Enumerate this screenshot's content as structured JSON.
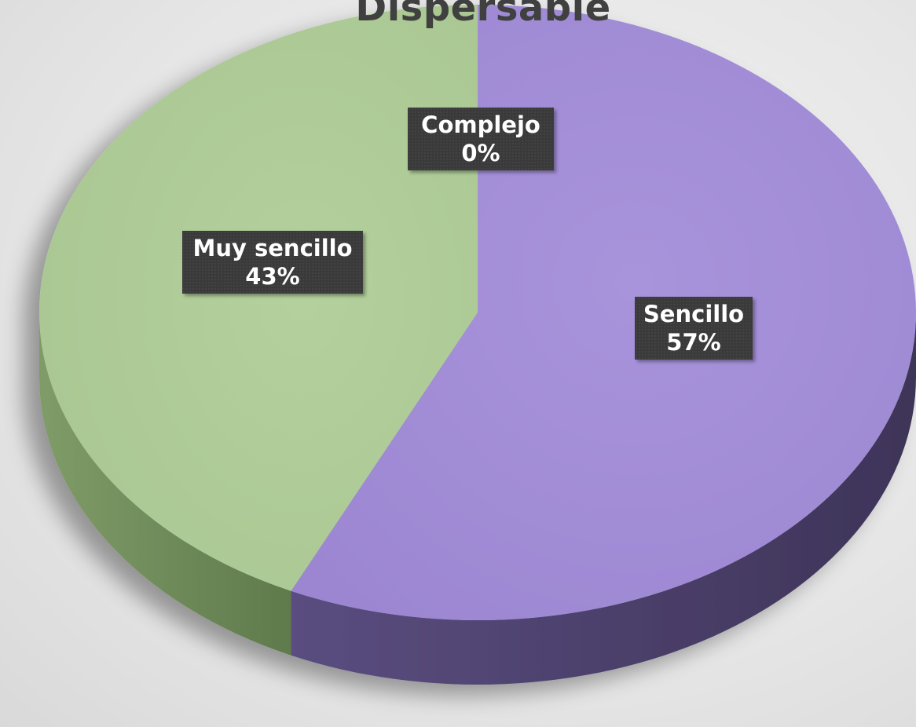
{
  "chart_data": {
    "type": "pie",
    "title": "Dispersable",
    "three_d": true,
    "slices": [
      {
        "category": "Complejo",
        "value": 0,
        "label_text": "0%",
        "color": "#9e89d4"
      },
      {
        "category": "Sencillo",
        "value": 57,
        "label_text": "57%",
        "color": "#a08ad6"
      },
      {
        "category": "Muy sencillo",
        "value": 43,
        "label_text": "43%",
        "color": "#adcb96"
      }
    ],
    "side_colors": {
      "Sencillo": "#4b3f6b",
      "Muy sencillo": "#6f8a5a"
    },
    "legend": "none"
  }
}
